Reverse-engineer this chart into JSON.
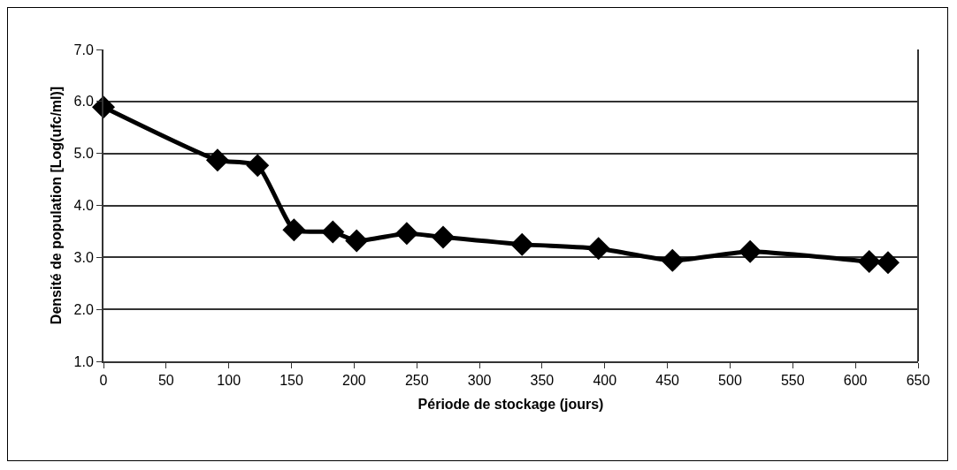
{
  "chart_data": {
    "type": "line",
    "xlabel": "Période de stockage (jours)",
    "ylabel": "Densité de population [Log(ufc/ml)]",
    "x": [
      0,
      91,
      123,
      152,
      183,
      202,
      242,
      271,
      334,
      395,
      454,
      516,
      611,
      626
    ],
    "series": [
      {
        "color": "#000000",
        "values": [
          5.89,
          4.87,
          4.77,
          3.53,
          3.49,
          3.32,
          3.46,
          3.39,
          3.25,
          3.17,
          2.94,
          3.11,
          2.92,
          2.9
        ]
      }
    ],
    "xlim": [
      0,
      650
    ],
    "xticks": [
      0,
      50,
      100,
      150,
      200,
      250,
      300,
      350,
      400,
      450,
      500,
      550,
      600,
      650
    ],
    "ylim": [
      1,
      7
    ],
    "yticks": [
      {
        "value": 1,
        "label": "1.0"
      },
      {
        "value": 2,
        "label": "2.0"
      },
      {
        "value": 3,
        "label": "3.0"
      },
      {
        "value": 4,
        "label": "4.0"
      },
      {
        "value": 5,
        "label": "5.0"
      },
      {
        "value": 6,
        "label": "6.0"
      },
      {
        "value": 7,
        "label": "7.0"
      }
    ],
    "grid": "y",
    "marker": "diamond",
    "line_style": "solid"
  }
}
